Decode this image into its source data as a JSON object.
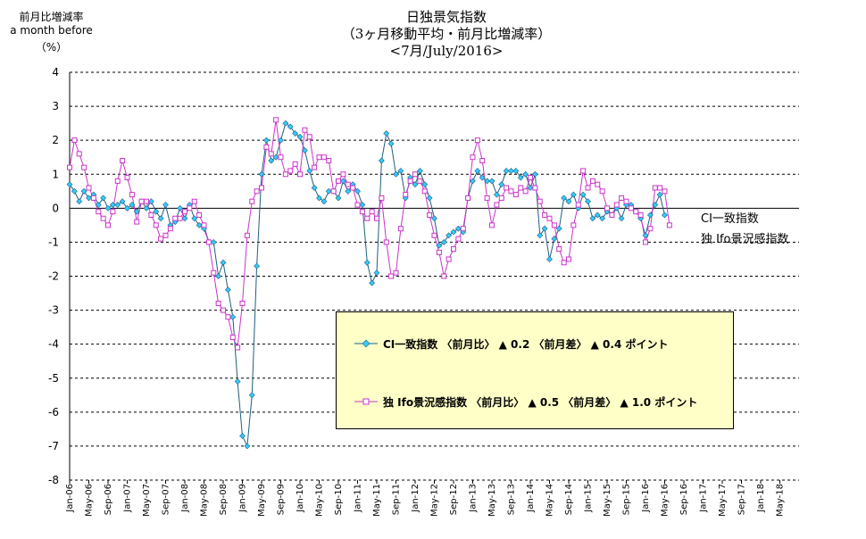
{
  "chart_data": {
    "type": "line",
    "title_lines": [
      "日独景気指数",
      "（3ヶ月移動平均・前月比増減率）",
      "<7月/July/2016>"
    ],
    "ylabel_lines": [
      "前月比増減率",
      "a month before",
      "（%）"
    ],
    "ylim": [
      -8,
      4
    ],
    "yticks": [
      4,
      3,
      2,
      1,
      0,
      -1,
      -2,
      -3,
      -4,
      -5,
      -6,
      -7,
      -8
    ],
    "x_ticks": [
      "Jan-06",
      "May-06",
      "Sep-06",
      "Jan-07",
      "May-07",
      "Sep-07",
      "Jan-08",
      "May-08",
      "Sep-08",
      "Jan-09",
      "May-09",
      "Sep-09",
      "Jan-10",
      "May-10",
      "Sep-10",
      "Jan-11",
      "May-11",
      "Sep-11",
      "Jan-12",
      "May-12",
      "Sep-12",
      "Jan-13",
      "May-13",
      "Sep-13",
      "Jan-14",
      "May-14",
      "Sep-14",
      "Jan-15",
      "May-15",
      "Sep-15",
      "Jan-16",
      "May-16",
      "Sep-16",
      "Jan-17",
      "May-17",
      "Sep-17",
      "Jan-18",
      "May-18"
    ],
    "x_start": "Jan-06",
    "grid": "dashed horizontal",
    "series": [
      {
        "name": "CI一致指数",
        "color": "#1f5f7f",
        "marker_color": "#33ccff",
        "marker": "diamond",
        "values": [
          0.7,
          0.5,
          0.2,
          0.5,
          0.3,
          0.4,
          0.1,
          0.3,
          0.0,
          0.1,
          0.1,
          0.2,
          0.0,
          0.1,
          -0.1,
          0.2,
          0.0,
          0.2,
          -0.1,
          -0.3,
          0.1,
          -0.5,
          -0.4,
          0.0,
          -0.3,
          0.1,
          -0.3,
          -0.5,
          -0.6,
          -1.0,
          -1.0,
          -2.0,
          -1.6,
          -2.4,
          -3.2,
          -5.1,
          -6.7,
          -7.0,
          -5.5,
          -1.7,
          1.0,
          2.0,
          1.4,
          1.5,
          2.0,
          2.5,
          2.4,
          2.2,
          2.1,
          1.7,
          1.1,
          0.6,
          0.3,
          0.2,
          0.5,
          0.5,
          0.3,
          0.8,
          0.5,
          0.7,
          0.5,
          0.1,
          -1.6,
          -2.2,
          -1.9,
          1.4,
          2.2,
          1.9,
          1.0,
          1.1,
          0.3,
          0.9,
          0.7,
          1.1,
          0.7,
          0.3,
          -0.3,
          -1.1,
          -1.0,
          -0.8,
          -0.7,
          -0.6,
          -0.7,
          0.3,
          0.8,
          1.1,
          0.9,
          0.8,
          0.8,
          0.4,
          0.7,
          1.1,
          1.1,
          1.1,
          0.9,
          1.0,
          0.6,
          1.0,
          -0.8,
          -0.6,
          -1.5,
          -0.9,
          -0.6,
          0.3,
          0.2,
          0.4,
          0.0,
          0.4,
          0.2,
          -0.3,
          -0.2,
          -0.3,
          -0.1,
          -0.2,
          0.0,
          -0.3,
          0.1,
          0.1,
          -0.1,
          -0.3,
          -0.8,
          -0.2,
          0.1,
          0.4,
          -0.2
        ]
      },
      {
        "name": "独 Ifo景況感指数",
        "color": "#cc33cc",
        "marker_color": "#ffffff",
        "marker": "square",
        "values": [
          1.2,
          2.0,
          1.6,
          1.2,
          0.6,
          0.3,
          -0.1,
          -0.3,
          -0.5,
          -0.1,
          0.8,
          1.4,
          0.9,
          0.4,
          -0.4,
          0.2,
          0.2,
          -0.2,
          -0.5,
          -0.9,
          -0.8,
          -0.6,
          -0.3,
          -0.3,
          -0.1,
          0.0,
          0.2,
          -0.2,
          -0.5,
          -1.0,
          -1.9,
          -2.8,
          -3.0,
          -3.2,
          -3.8,
          -4.1,
          -2.8,
          -0.8,
          0.2,
          0.5,
          0.6,
          1.8,
          1.6,
          2.6,
          1.5,
          1.0,
          1.1,
          1.3,
          1.0,
          2.3,
          2.1,
          1.2,
          1.5,
          1.5,
          1.4,
          0.5,
          0.8,
          1.0,
          0.7,
          0.6,
          0.1,
          -0.1,
          -0.3,
          -0.1,
          -0.3,
          0.3,
          -1.0,
          -2.0,
          -1.9,
          -0.6,
          0.4,
          0.8,
          1.0,
          0.8,
          0.5,
          -0.2,
          -0.8,
          -1.3,
          -2.0,
          -1.5,
          -1.2,
          -0.9,
          -0.6,
          0.3,
          1.5,
          2.0,
          1.4,
          0.3,
          -0.5,
          0.1,
          0.3,
          0.6,
          0.5,
          0.4,
          0.6,
          0.5,
          0.9,
          0.6,
          0.2,
          -0.2,
          -0.3,
          -0.5,
          -1.2,
          -1.6,
          -1.5,
          -0.5,
          0.1,
          1.1,
          0.6,
          0.8,
          0.7,
          0.5,
          0.0,
          -0.2,
          0.1,
          0.3,
          0.2,
          0.0,
          -0.1,
          -0.2,
          -1.0,
          -0.6,
          0.6,
          0.6,
          0.5,
          -0.5
        ]
      }
    ],
    "legend": {
      "row1": "CI一致指数 〈前月比〉 ▲ 0.2 〈前月差〉 ▲ 0.4 ポイント",
      "row2": "独 Ifo景況感指数 〈前月比〉 ▲ 0.5 〈前月差〉 ▲ 1.0 ポイント"
    },
    "side_labels": [
      "CI一致指数",
      "独 Ifo景況感指数"
    ]
  }
}
